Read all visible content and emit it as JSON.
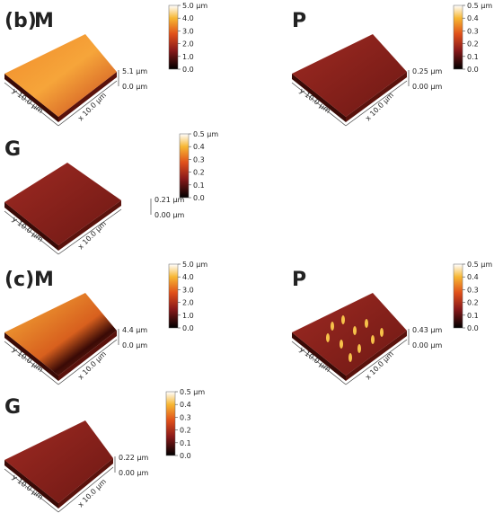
{
  "panels": [
    {
      "label": "(b)",
      "name": "M",
      "colorbar_ticks": [
        "5.0 µm",
        "4.0",
        "3.0",
        "2.0",
        "1.0",
        "0.0"
      ],
      "z_max": "5.1 µm",
      "z_min": "0.0 µm",
      "x_axis": "x 10.0 µm",
      "y_axis": "y 10.0 µm"
    },
    {
      "name": "P",
      "colorbar_ticks": [
        "0.5 µm",
        "0.4",
        "0.3",
        "0.2",
        "0.1",
        "0.0"
      ],
      "z_max": "0.25 µm",
      "z_min": "0.00 µm",
      "x_axis": "x 10.0 µm",
      "y_axis": "y 10.0 µm"
    },
    {
      "name": "G",
      "colorbar_ticks": [
        "0.5 µm",
        "0.4",
        "0.3",
        "0.2",
        "0.1",
        "0.0"
      ],
      "z_max": "0.21 µm",
      "z_min": "0.00 µm",
      "x_axis": "x 10.0 µm",
      "y_axis": "y 10.0 µm"
    },
    {
      "label": "(c)",
      "name": "M",
      "colorbar_ticks": [
        "5.0 µm",
        "4.0",
        "3.0",
        "2.0",
        "1.0",
        "0.0"
      ],
      "z_max": "4.4 µm",
      "z_min": "0.0 µm",
      "x_axis": "x 10.0 µm",
      "y_axis": "y 10.0 µm"
    },
    {
      "name": "P",
      "colorbar_ticks": [
        "0.5 µm",
        "0.4",
        "0.3",
        "0.2",
        "0.1",
        "0.0"
      ],
      "z_max": "0.43 µm",
      "z_min": "0.00 µm",
      "x_axis": "x 10.0 µm",
      "y_axis": "y 10.0 µm"
    },
    {
      "name": "G",
      "colorbar_ticks": [
        "0.5 µm",
        "0.4",
        "0.3",
        "0.2",
        "0.1",
        "0.0"
      ],
      "z_max": "0.22 µm",
      "z_min": "0.00 µm",
      "x_axis": "x 10.0 µm",
      "y_axis": "y 10.0 µm"
    }
  ]
}
